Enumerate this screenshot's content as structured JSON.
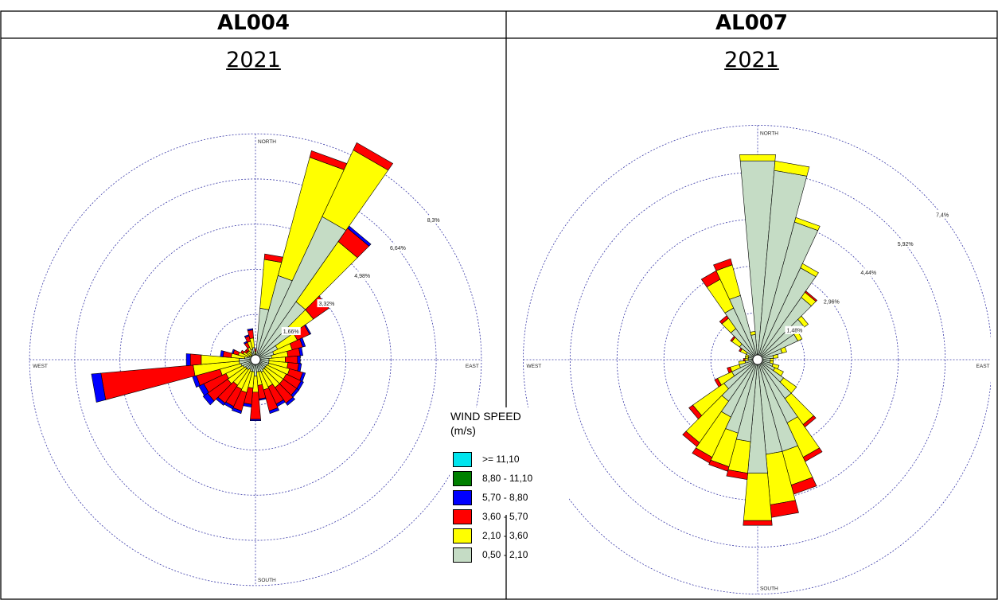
{
  "headers": [
    "AL004",
    "AL007"
  ],
  "years": [
    "2021",
    "2021"
  ],
  "legend": {
    "title_line1": "WIND SPEED",
    "title_line2": "(m/s)",
    "items": [
      {
        "label": ">= 11,10",
        "color": "#00e5ee"
      },
      {
        "label": "8,80 - 11,10",
        "color": "#008000"
      },
      {
        "label": "5,70 - 8,80",
        "color": "#0000ff"
      },
      {
        "label": "3,60 - 5,70",
        "color": "#ff0000"
      },
      {
        "label": "2,10 - 3,60",
        "color": "#ffff00"
      },
      {
        "label": "0,50 - 2,10",
        "color": "#c5dcc5"
      }
    ]
  },
  "chart_data": [
    {
      "type": "wind-rose",
      "title": "AL004",
      "subtitle": "2021",
      "direction_labels": [
        "NORTH",
        "EAST",
        "SOUTH",
        "WEST"
      ],
      "ring_labels": [
        "1,66%",
        "3,32%",
        "4,98%",
        "6,64%",
        "8,3%"
      ],
      "ring_values": [
        1.66,
        3.32,
        4.98,
        6.64,
        8.3
      ],
      "speed_classes": [
        "0,50 - 2,10",
        "2,10 - 3,60",
        "3,60 - 5,70",
        "5,70 - 8,80",
        "8,80 - 11,10",
        ">= 11,10"
      ],
      "directions_deg": [
        0,
        10,
        20,
        30,
        40,
        50,
        60,
        70,
        80,
        90,
        100,
        110,
        120,
        130,
        140,
        150,
        160,
        170,
        180,
        190,
        200,
        210,
        220,
        230,
        240,
        250,
        260,
        270,
        280,
        290,
        300,
        310,
        320,
        330,
        340,
        350
      ],
      "frequencies_percent": [
        [
          0.1,
          0.2,
          0.1,
          0,
          0,
          0
        ],
        [
          1.9,
          1.8,
          0.2,
          0,
          0,
          0
        ],
        [
          3.2,
          4.5,
          0.25,
          0,
          0,
          0
        ],
        [
          5.8,
          2.7,
          0.3,
          0,
          0,
          0
        ],
        [
          2.6,
          2.7,
          0.6,
          0.1,
          0,
          0
        ],
        [
          1.6,
          1.0,
          0.7,
          0,
          0,
          0
        ],
        [
          0.9,
          0.8,
          0.5,
          0.05,
          0,
          0
        ],
        [
          0.7,
          0.7,
          0.4,
          0.1,
          0,
          0
        ],
        [
          0.6,
          0.6,
          0.45,
          0.1,
          0,
          0
        ],
        [
          0.5,
          0.6,
          0.45,
          0.1,
          0,
          0
        ],
        [
          0.5,
          0.7,
          0.4,
          0.1,
          0,
          0
        ],
        [
          0.5,
          0.8,
          0.5,
          0.1,
          0,
          0
        ],
        [
          0.45,
          0.8,
          0.6,
          0.1,
          0,
          0
        ],
        [
          0.45,
          0.8,
          0.6,
          0.1,
          0,
          0
        ],
        [
          0.45,
          0.8,
          0.7,
          0.1,
          0,
          0
        ],
        [
          0.5,
          0.6,
          0.7,
          0.1,
          0,
          0
        ],
        [
          0.45,
          0.7,
          0.8,
          0.1,
          0,
          0
        ],
        [
          0.45,
          0.5,
          0.5,
          0.05,
          0,
          0
        ],
        [
          0.6,
          0.6,
          1.0,
          0.05,
          0,
          0
        ],
        [
          0.45,
          0.6,
          0.6,
          0.1,
          0,
          0
        ],
        [
          0.45,
          0.8,
          0.7,
          0.1,
          0,
          0
        ],
        [
          0.4,
          0.8,
          0.7,
          0.1,
          0,
          0
        ],
        [
          0.45,
          0.7,
          0.8,
          0.1,
          0,
          0
        ],
        [
          0.45,
          0.8,
          0.9,
          0.2,
          0,
          0
        ],
        [
          0.5,
          0.7,
          0.9,
          0.2,
          0,
          0
        ],
        [
          0.55,
          0.8,
          0.9,
          0.15,
          0,
          0
        ],
        [
          0.6,
          1.7,
          3.4,
          0.35,
          0,
          0
        ],
        [
          0.6,
          1.4,
          0.4,
          0.15,
          0,
          0
        ],
        [
          0.4,
          0.5,
          0.3,
          0.1,
          0,
          0
        ],
        [
          0.3,
          0.35,
          0.2,
          0.05,
          0,
          0
        ],
        [
          0.25,
          0.25,
          0.1,
          0,
          0,
          0
        ],
        [
          0.2,
          0.2,
          0.1,
          0,
          0,
          0
        ],
        [
          0.2,
          0.2,
          0.1,
          0,
          0,
          0
        ],
        [
          0.3,
          0.2,
          0.2,
          0.05,
          0,
          0
        ],
        [
          0.4,
          0.3,
          0.2,
          0.05,
          0,
          0
        ],
        [
          0.45,
          0.35,
          0.3,
          0.05,
          0,
          0
        ]
      ]
    },
    {
      "type": "wind-rose",
      "title": "AL007",
      "subtitle": "2021",
      "direction_labels": [
        "NORTH",
        "EAST",
        "SOUTH",
        "WEST"
      ],
      "ring_labels": [
        "1,48%",
        "2,96%",
        "4,44%",
        "5,92%",
        "7,4%"
      ],
      "ring_values": [
        1.48,
        2.96,
        4.44,
        5.92,
        7.4
      ],
      "speed_classes": [
        "0,50 - 2,10",
        "2,10 - 3,60",
        "3,60 - 5,70",
        "5,70 - 8,80",
        "8,80 - 11,10",
        ">= 11,10"
      ],
      "directions_deg": [
        0,
        10,
        20,
        30,
        40,
        50,
        60,
        70,
        80,
        90,
        100,
        110,
        120,
        130,
        140,
        150,
        160,
        170,
        180,
        190,
        200,
        210,
        220,
        230,
        240,
        250,
        260,
        270,
        280,
        290,
        300,
        310,
        320,
        330,
        340,
        350
      ],
      "frequencies_percent": [
        [
          6.3,
          0.2,
          0,
          0,
          0,
          0
        ],
        [
          6.0,
          0.3,
          0,
          0,
          0,
          0
        ],
        [
          4.5,
          0.15,
          0,
          0,
          0,
          0
        ],
        [
          3.2,
          0.15,
          0,
          0,
          0,
          0
        ],
        [
          2.4,
          0.2,
          0.05,
          0,
          0,
          0
        ],
        [
          1.8,
          0.15,
          0,
          0,
          0,
          0
        ],
        [
          1.4,
          0.15,
          0,
          0,
          0,
          0
        ],
        [
          0.8,
          0.15,
          0,
          0,
          0,
          0
        ],
        [
          0.5,
          0.15,
          0,
          0,
          0,
          0
        ],
        [
          0.4,
          0.1,
          0,
          0,
          0,
          0
        ],
        [
          0.4,
          0.1,
          0,
          0,
          0,
          0
        ],
        [
          0.5,
          0.2,
          0,
          0,
          0,
          0
        ],
        [
          0.6,
          0.3,
          0,
          0,
          0,
          0
        ],
        [
          1.0,
          0.5,
          0,
          0,
          0,
          0
        ],
        [
          1.5,
          1.0,
          0.1,
          0,
          0,
          0
        ],
        [
          2.2,
          1.2,
          0.15,
          0,
          0,
          0
        ],
        [
          3.0,
          1.1,
          0.3,
          0,
          0,
          0
        ],
        [
          3.0,
          1.6,
          0.4,
          0,
          0,
          0
        ],
        [
          3.6,
          1.5,
          0.15,
          0,
          0,
          0
        ],
        [
          2.6,
          1.0,
          0.2,
          0,
          0,
          0
        ],
        [
          2.4,
          1.1,
          0.15,
          0,
          0,
          0
        ],
        [
          2.0,
          1.4,
          0.2,
          0,
          0,
          0
        ],
        [
          1.6,
          1.6,
          0.15,
          0,
          0,
          0
        ],
        [
          1.3,
          1.2,
          0.15,
          0,
          0,
          0
        ],
        [
          0.9,
          0.5,
          0.1,
          0,
          0,
          0
        ],
        [
          0.6,
          0.3,
          0.1,
          0,
          0,
          0
        ],
        [
          0.4,
          0.2,
          0,
          0,
          0,
          0
        ],
        [
          0.3,
          0.1,
          0.05,
          0,
          0,
          0
        ],
        [
          0.3,
          0.1,
          0,
          0,
          0,
          0
        ],
        [
          0.3,
          0.1,
          0,
          0,
          0,
          0
        ],
        [
          0.4,
          0.2,
          0.05,
          0,
          0,
          0
        ],
        [
          0.7,
          0.3,
          0.05,
          0,
          0,
          0
        ],
        [
          1.2,
          0.4,
          0.1,
          0,
          0,
          0
        ],
        [
          1.8,
          1.0,
          0.3,
          0,
          0,
          0
        ],
        [
          2.1,
          1.0,
          0.2,
          0,
          0,
          0
        ],
        [
          0.8,
          0.1,
          0,
          0,
          0,
          0
        ]
      ]
    }
  ]
}
